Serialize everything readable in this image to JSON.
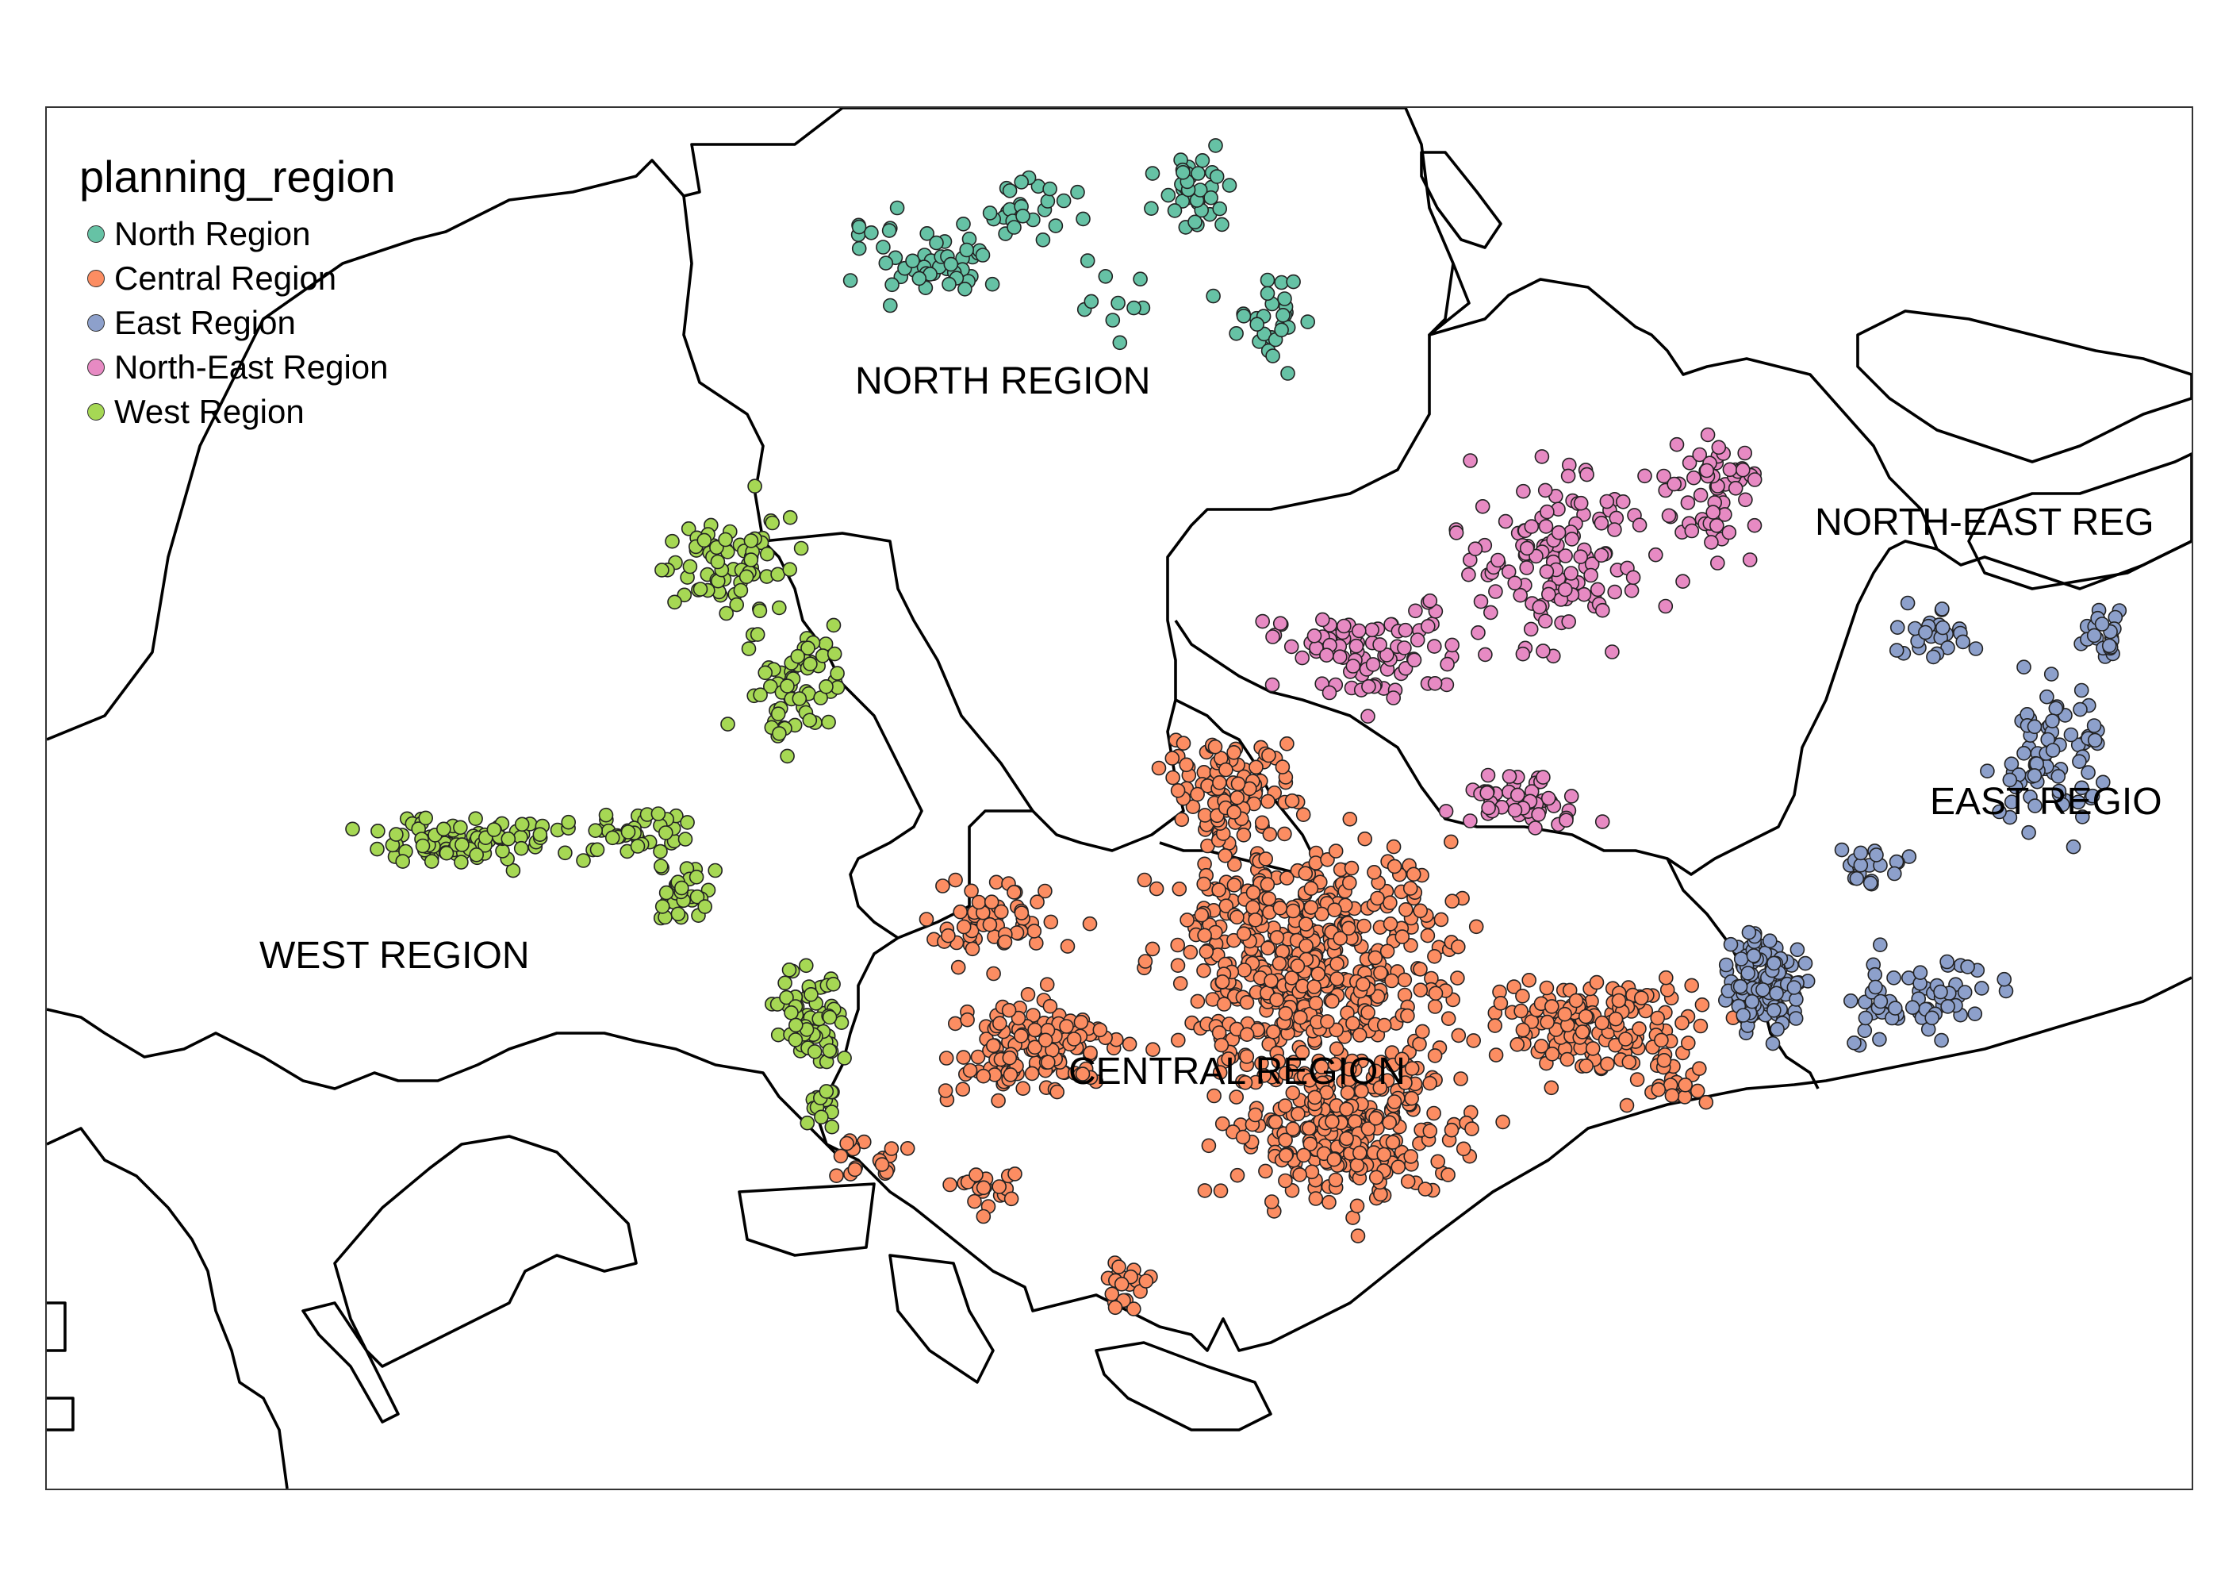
{
  "legend": {
    "title": "planning_region",
    "items": [
      {
        "label": "North Region",
        "color": "#66C2A5"
      },
      {
        "label": "Central Region",
        "color": "#FC8D62"
      },
      {
        "label": "East Region",
        "color": "#8DA0CB"
      },
      {
        "label": "North-East Region",
        "color": "#E78AC3"
      },
      {
        "label": "West Region",
        "color": "#A6D854"
      }
    ]
  },
  "region_labels": {
    "north": "NORTH REGION",
    "north_east": "NORTH-EAST REG",
    "east": "EAST REGIO",
    "west": "WEST REGION",
    "central": "CENTRAL REGION"
  }
}
